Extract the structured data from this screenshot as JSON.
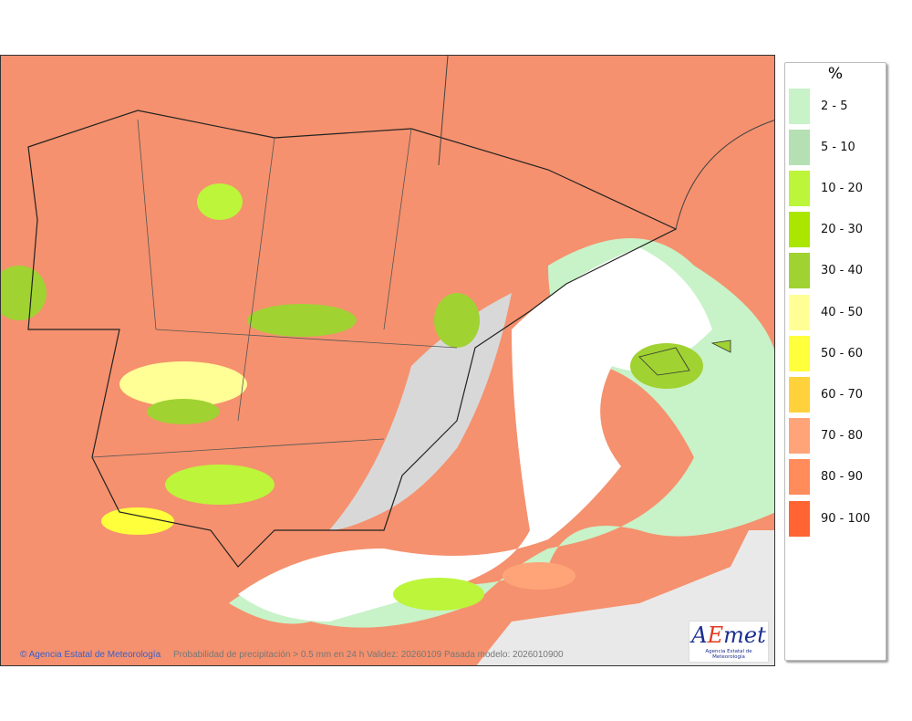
{
  "map": {
    "caption": "Probabilidad de precipitación > 0.5 mm en 24 h Validez: 20260109 Pasada modelo: 2026010900",
    "credit": "© Agencia Estatal de Meteorología",
    "logo": {
      "text": "AEmet",
      "subtitle": "Agencia Estatal de Meteorología"
    }
  },
  "legend": {
    "title": "%",
    "items": [
      {
        "label": "2 - 5",
        "color": "#c8f2c8"
      },
      {
        "label": "5 - 10",
        "color": "#b4e0b4"
      },
      {
        "label": "10 - 20",
        "color": "#bcf53a"
      },
      {
        "label": "20 - 30",
        "color": "#aae600"
      },
      {
        "label": "30 - 40",
        "color": "#a0d232"
      },
      {
        "label": "40 - 50",
        "color": "#ffff96"
      },
      {
        "label": "50 - 60",
        "color": "#ffff3c"
      },
      {
        "label": "60 - 70",
        "color": "#ffd23c"
      },
      {
        "label": "70 - 80",
        "color": "#ffa478"
      },
      {
        "label": "80 - 90",
        "color": "#ff8c5a"
      },
      {
        "label": "90 - 100",
        "color": "#ff6432"
      }
    ]
  }
}
